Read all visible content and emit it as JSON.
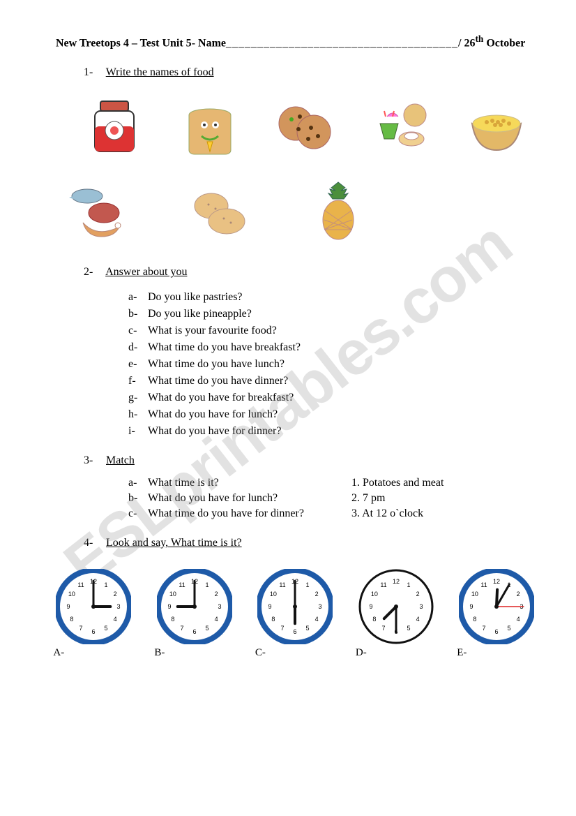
{
  "header": {
    "book": "New Treetops 4",
    "unit": "Test Unit 5",
    "name_label": "Name",
    "blank": "_____________________________________",
    "date": "26",
    "date_sup": "th",
    "month": "October"
  },
  "watermark": "ESLprintables.com",
  "sections": {
    "s1": {
      "num": "1-",
      "title": "Write the names of food"
    },
    "s2": {
      "num": "2-",
      "title": "Answer about you"
    },
    "s3": {
      "num": "3-",
      "title": "Match"
    },
    "s4": {
      "num": "4-",
      "title": "Look and say, What time is it?"
    }
  },
  "foods": {
    "row1": [
      "jam",
      "toast",
      "cookies",
      "pastries",
      "cereal"
    ],
    "row2": [
      "meat-fish",
      "potatoes",
      "pineapple"
    ]
  },
  "questions": {
    "a": {
      "l": "a-",
      "t": "Do you like pastries?"
    },
    "b": {
      "l": "b-",
      "t": "Do you like pineapple?"
    },
    "c": {
      "l": "c-",
      "t": "What is your favourite food?"
    },
    "d": {
      "l": "d-",
      "t": "What time do you have breakfast?"
    },
    "e": {
      "l": "e-",
      "t": "What time do you have lunch?"
    },
    "f": {
      "l": "f-",
      "t": "What time do you have dinner?"
    },
    "g": {
      "l": "g-",
      "t": "What do you have for breakfast?"
    },
    "h": {
      "l": "h-",
      "t": "What do you have for lunch?"
    },
    "i": {
      "l": "i-",
      "t": "What do you have for dinner?"
    }
  },
  "match": {
    "a": {
      "l": "a-",
      "left": "What time is it?",
      "right": "1. Potatoes and meat"
    },
    "b": {
      "l": "b-",
      "left": "What do you have for lunch?",
      "right": "2. 7 pm"
    },
    "c": {
      "l": "c-",
      "left": "What time do you have for dinner?",
      "right": "3. At 12 o`clock"
    }
  },
  "clocks": {
    "style": {
      "rim_color_blue": "#1e5aa8",
      "rim_color_black": "#111111",
      "face_color": "#ffffff",
      "hand_color": "#111111",
      "second_hand_color": "#d22",
      "size": 108
    },
    "A": {
      "label": "A-",
      "rim": "blue",
      "hour": 3,
      "minute": 0,
      "second": null
    },
    "B": {
      "label": "B-",
      "rim": "blue",
      "hour": 9,
      "minute": 0,
      "second": null
    },
    "C": {
      "label": "C-",
      "rim": "blue",
      "hour": 6,
      "minute": 0,
      "second": null
    },
    "D": {
      "label": "D-",
      "rim": "black",
      "hour": 7,
      "minute": 30,
      "second": null
    },
    "E": {
      "label": "E-",
      "rim": "blue",
      "hour": 12,
      "minute": 5,
      "second": 15
    }
  }
}
